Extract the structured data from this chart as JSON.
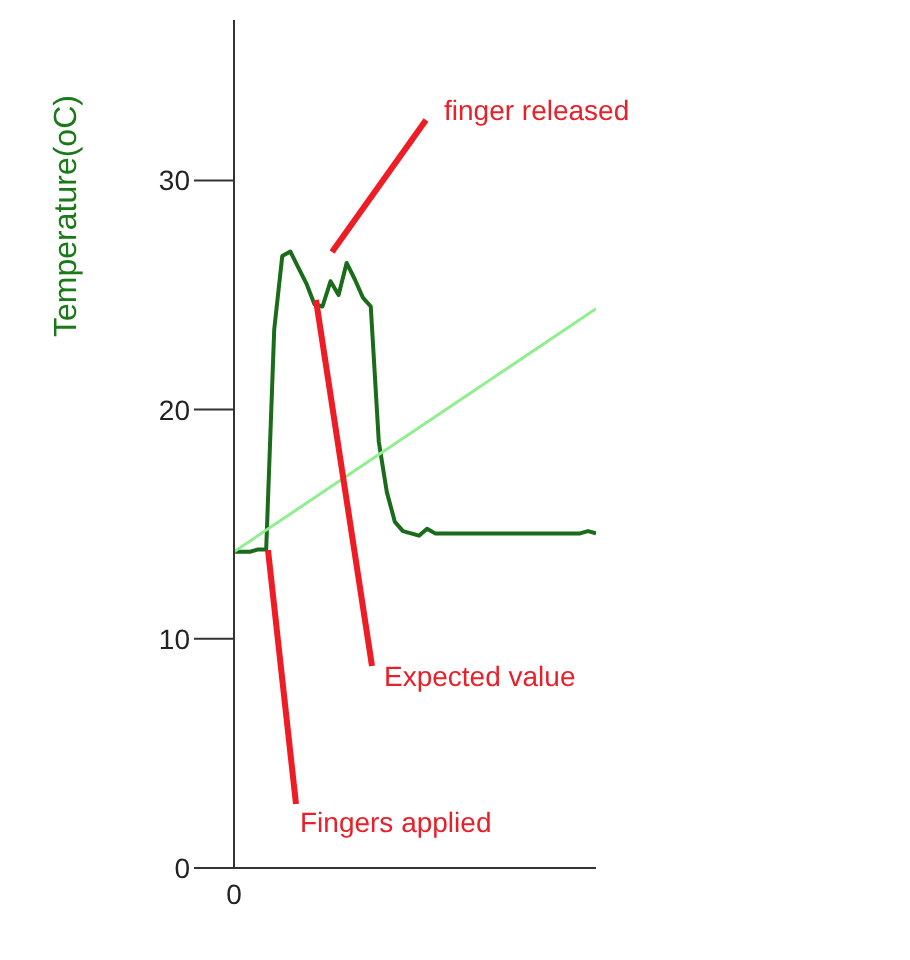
{
  "chart_data": {
    "type": "line",
    "ylabel": "Temperature(oC)",
    "categories": [
      "0",
      null,
      null,
      null,
      null,
      null,
      null,
      null,
      null,
      null,
      null,
      null,
      null,
      null,
      null,
      null,
      null,
      null,
      null,
      null,
      null,
      null,
      null,
      null,
      null,
      null,
      null,
      null,
      null,
      null,
      null,
      null,
      null,
      null,
      null,
      null,
      null,
      null,
      null,
      null,
      null,
      null,
      null,
      null,
      null,
      null
    ],
    "series": [
      {
        "color": "#1a6b1a",
        "values": [
          13.8,
          13.8,
          13.8,
          13.9,
          13.9,
          23.5,
          26.7,
          26.9,
          26.2,
          25.5,
          24.6,
          24.5,
          25.6,
          25.0,
          26.4,
          25.7,
          24.9,
          24.5,
          18.6,
          16.4,
          15.1,
          14.7,
          14.6,
          14.5,
          14.8,
          14.6,
          14.6,
          14.6,
          14.6,
          14.6,
          14.6,
          14.6,
          14.6,
          14.6,
          14.6,
          14.6,
          14.6,
          14.6,
          14.6,
          14.6,
          14.6,
          14.6,
          14.6,
          14.6,
          14.7,
          14.6
        ]
      },
      {
        "color": "#90ee90",
        "values": [
          13.8,
          null,
          null,
          null,
          null,
          null,
          null,
          null,
          null,
          null,
          null,
          null,
          null,
          null,
          null,
          null,
          null,
          null,
          null,
          null,
          null,
          null,
          null,
          null,
          null,
          null,
          null,
          null,
          null,
          null,
          null,
          null,
          null,
          null,
          null,
          null,
          null,
          null,
          null,
          null,
          null,
          null,
          null,
          null,
          null,
          24.4
        ]
      }
    ],
    "ylim": [
      0,
      37
    ],
    "yticks": [
      0,
      10,
      20,
      30
    ],
    "marker": "none",
    "annotations": [
      "finger released",
      "Expected value",
      "Fingers applied"
    ]
  }
}
